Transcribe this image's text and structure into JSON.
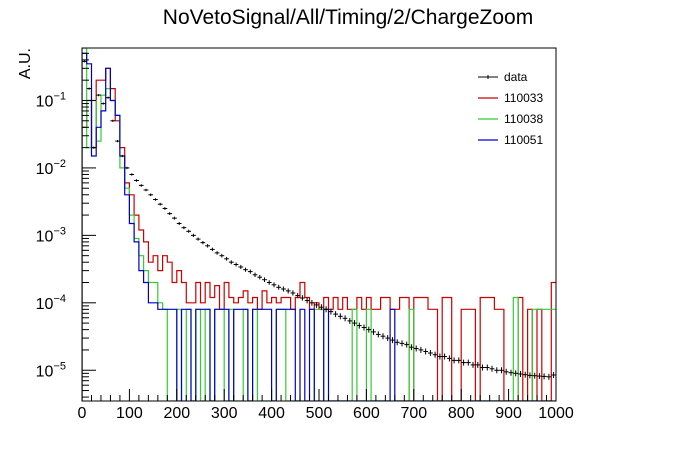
{
  "chart_data": {
    "type": "histogram",
    "title": "NoVetoSignal/All/Timing/2/ChargeZoom",
    "xlabel": "",
    "ylabel": "A.U.",
    "xlim": [
      0,
      1000
    ],
    "ylim": [
      3.5e-06,
      0.6
    ],
    "yscale": "log",
    "grid": false,
    "legend_position": "top-right",
    "bin_width": 10,
    "x_ticks": [
      "0",
      "100",
      "200",
      "300",
      "400",
      "500",
      "600",
      "700",
      "800",
      "900",
      "1000"
    ],
    "y_ticks": [
      {
        "base": "10",
        "exp": "−5",
        "value": 1e-05
      },
      {
        "base": "10",
        "exp": "−4",
        "value": 0.0001
      },
      {
        "base": "10",
        "exp": "−3",
        "value": 0.001
      },
      {
        "base": "10",
        "exp": "−2",
        "value": 0.01
      },
      {
        "base": "10",
        "exp": "−1",
        "value": 0.1
      }
    ],
    "series": [
      {
        "name": "data",
        "style": "points",
        "color": "#000000",
        "values": [
          0.38,
          0.15,
          0.02,
          0.12,
          0.09,
          0.11,
          0.05,
          0.025,
          0.015,
          0.01,
          0.008,
          0.0065,
          0.0055,
          0.0047,
          0.004,
          0.0034,
          0.0029,
          0.0025,
          0.0021,
          0.0018,
          0.0015,
          0.0013,
          0.00115,
          0.001,
          0.00088,
          0.00078,
          0.0007,
          0.00062,
          0.00055,
          0.0005,
          0.00045,
          0.0004,
          0.00037,
          0.00034,
          0.00031,
          0.00029,
          0.00026,
          0.00024,
          0.00022,
          0.0002,
          0.000185,
          0.00017,
          0.00016,
          0.00015,
          0.00014,
          0.000128,
          0.000118,
          0.000108,
          0.0001,
          9.3e-05,
          8.6e-05,
          8e-05,
          7.4e-05,
          6.8e-05,
          6.3e-05,
          5.9e-05,
          5.4e-05,
          5e-05,
          4.6e-05,
          4.3e-05,
          4e-05,
          3.7e-05,
          3.4e-05,
          3.2e-05,
          3e-05,
          2.8e-05,
          2.6e-05,
          2.5e-05,
          2.4e-05,
          2.2e-05,
          2.1e-05,
          2e-05,
          1.9e-05,
          1.8e-05,
          1.7e-05,
          1.6e-05,
          1.6e-05,
          1.5e-05,
          1.4e-05,
          1.4e-05,
          1.3e-05,
          1.3e-05,
          1.2e-05,
          1.2e-05,
          1.1e-05,
          1.1e-05,
          1.05e-05,
          1e-05,
          1e-05,
          9.5e-06,
          9.2e-06,
          9e-06,
          8.8e-06,
          8.6e-06,
          8.4e-06,
          8.3e-06,
          8.2e-06,
          8.1e-06,
          8e-06,
          8.5e-06
        ]
      },
      {
        "name": "110033",
        "style": "step",
        "color": "#cc0000",
        "values": [
          0.04,
          0.1,
          0.02,
          0.2,
          0.2,
          0.3,
          0.15,
          0.05,
          0.02,
          0.006,
          0.004,
          0.002,
          0.0012,
          0.0008,
          0.0004,
          0.0005,
          0.0003,
          0.0005,
          0.0004,
          0.0002,
          0.0003,
          0.0002,
          0.0001,
          0.0001,
          0.0002,
          0.0001,
          0.0002,
          0.00012,
          0.00018,
          8e-05,
          0.0002,
          0.00012,
          0.0001,
          0.00012,
          0.00015,
          0.0001,
          0.00012,
          8e-05,
          0.00015,
          0.0001,
          0.00012,
          0.0001,
          0.00012,
          0.00012,
          8e-05,
          0.00012,
          0.0002,
          0.00012,
          8e-05,
          0.0001,
          8e-05,
          0.00012,
          8e-05,
          0.00012,
          8e-05,
          0.00012,
          8e-05,
          8e-05,
          0.00012,
          8e-05,
          0.00012,
          8e-05,
          8e-05,
          0.00012,
          0.00012,
          8e-05,
          8e-05,
          0.00012,
          0.00012,
          0.0,
          0.00012,
          0.00012,
          0.00012,
          8e-05,
          8e-05,
          0.0,
          0.00012,
          0.00012,
          0.0,
          0.0,
          8e-05,
          8e-05,
          8e-05,
          0.0,
          0.00012,
          0.00012,
          0.00012,
          8e-05,
          8e-05,
          0.0,
          0.0,
          0.0,
          0.00012,
          0.0,
          8e-05,
          0.0,
          8e-05,
          0.0,
          0.0,
          0.0002
        ]
      },
      {
        "name": "110038",
        "style": "step",
        "color": "#33cc33",
        "values": [
          0.6,
          0.02,
          0.1,
          0.025,
          0.12,
          0.15,
          0.1,
          0.06,
          0.01,
          0.005,
          0.002,
          0.0009,
          0.0005,
          0.0003,
          0.0002,
          0.0002,
          0.0001,
          8e-05,
          0.0,
          0.0,
          8e-05,
          0.0,
          8e-05,
          0.0,
          8e-05,
          0.0,
          8e-05,
          0.0,
          8e-05,
          8e-05,
          0.0,
          8e-05,
          0.0,
          0.0,
          8e-05,
          0.0,
          8e-05,
          0.0,
          0.0,
          0.0,
          0.0,
          8e-05,
          8e-05,
          0.0,
          0.0,
          0.0,
          0.0,
          0.0,
          0.0,
          8e-05,
          8e-05,
          0.0,
          0.0,
          0.0,
          0.0,
          0.0,
          0.0,
          8e-05,
          0.0,
          0.0,
          8e-05,
          0.0,
          0.0,
          0.0,
          0.0,
          0.0,
          0.0,
          0.0,
          0.0,
          8e-05,
          0.0,
          0.0,
          0.0,
          0.0,
          0.0,
          0.0,
          0.0,
          0.0,
          0.0,
          0.0,
          0.0,
          0.0,
          0.0,
          0.0,
          0.0,
          0.0,
          0.0,
          0.0,
          0.0,
          0.0,
          0.0,
          0.00012,
          0.0,
          0.0,
          0.0,
          8e-05,
          8e-05,
          8e-05,
          8e-05,
          8e-05
        ]
      },
      {
        "name": "110051",
        "style": "step",
        "color": "#0000cc",
        "values": [
          0.5,
          0.35,
          0.015,
          0.04,
          0.07,
          0.3,
          0.1,
          0.06,
          0.015,
          0.004,
          0.0015,
          0.0008,
          0.0003,
          0.0002,
          0.0001,
          0.0001,
          8e-05,
          8e-05,
          8e-05,
          8e-05,
          0.0,
          8e-05,
          8e-05,
          0.0,
          8e-05,
          8e-05,
          8e-05,
          0.0,
          8e-05,
          8e-05,
          8e-05,
          0.0,
          8e-05,
          8e-05,
          8e-05,
          0.0,
          8e-05,
          8e-05,
          8e-05,
          8e-05,
          0.0,
          8e-05,
          8e-05,
          8e-05,
          8e-05,
          0.0,
          8e-05,
          0.0,
          8e-05,
          0.0,
          0.0,
          8e-05,
          0.0,
          0.0,
          0.0,
          0.0,
          0.0,
          0.0,
          0.0,
          0.0,
          0.0,
          0.0,
          0.0,
          0.0,
          0.0,
          8e-05,
          0.0,
          0.0,
          0.0,
          0.0,
          0.0,
          0.0,
          0.0,
          0.0,
          0.0,
          0.0,
          0.0,
          0.0,
          0.0,
          0.0,
          0.0,
          0.0,
          0.0,
          0.0,
          0.0,
          0.0,
          0.0,
          0.0,
          0.0,
          0.0,
          0.0,
          0.0,
          0.0,
          0.0,
          0.0,
          0.0,
          0.0,
          0.0,
          0.0,
          0.0
        ]
      }
    ]
  }
}
